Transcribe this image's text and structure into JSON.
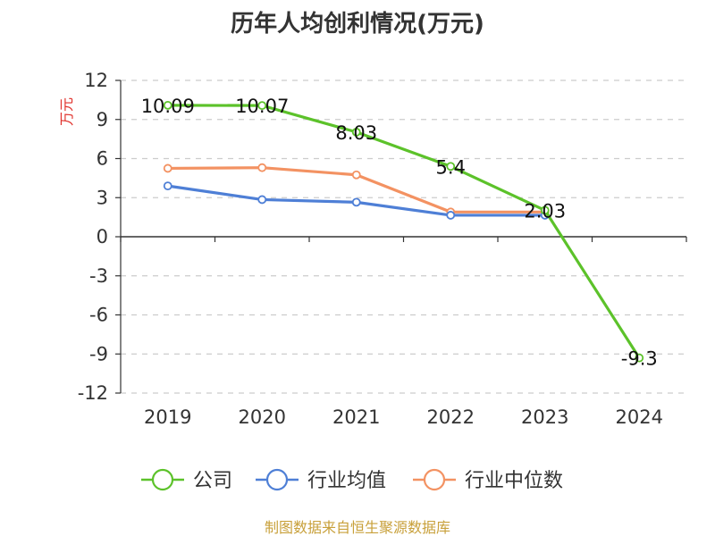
{
  "chart_data": {
    "type": "line",
    "title": "历年人均创利情况(万元)",
    "ylabel": "万元",
    "xlabel": "",
    "categories": [
      "2019",
      "2020",
      "2021",
      "2022",
      "2023",
      "2024"
    ],
    "ylim": [
      -12,
      12
    ],
    "yticks": [
      12,
      9,
      6,
      3,
      0,
      -3,
      -6,
      -9,
      -12
    ],
    "grid": true,
    "legend_position": "bottom",
    "series": [
      {
        "name": "公司",
        "color": "#5cc22a",
        "values": [
          10.09,
          10.07,
          8.03,
          5.4,
          2.03,
          -9.3
        ],
        "labels": [
          "10.09",
          "10.07",
          "8.03",
          "5.4",
          "2.03",
          "-9.3"
        ]
      },
      {
        "name": "行业均值",
        "color": "#4e7fd6",
        "values": [
          3.9,
          2.85,
          2.65,
          1.65,
          1.65,
          null
        ]
      },
      {
        "name": "行业中位数",
        "color": "#f39262",
        "values": [
          5.25,
          5.3,
          4.75,
          1.9,
          1.9,
          null
        ]
      }
    ],
    "source": "制图数据来自恒生聚源数据库"
  }
}
